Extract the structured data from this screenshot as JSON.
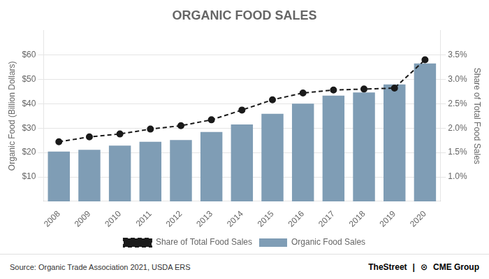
{
  "chart_data": {
    "type": "bar",
    "title": "ORGANIC FOOD SALES",
    "x_label": null,
    "y_label": "Organic Food (Billion Dollars)",
    "y2_label": "Share of Total Food Sales",
    "categories": [
      "2008",
      "2009",
      "2010",
      "2011",
      "2012",
      "2013",
      "2014",
      "2015",
      "2016",
      "2017",
      "2018",
      "2019",
      "2020"
    ],
    "series": [
      {
        "name": "Organic Food Sales",
        "type": "bar",
        "color": "#7f9db5",
        "values": [
          20.4,
          21.1,
          22.8,
          24.4,
          25.1,
          28.4,
          31.5,
          35.9,
          40.0,
          43.3,
          44.6,
          47.9,
          56.5
        ]
      },
      {
        "name": "Share of Total Food Sales",
        "type": "line",
        "axis": "y2",
        "color": "#1a1a1a",
        "marker": "circle",
        "line_style": "dashed",
        "values": [
          1.72,
          1.82,
          1.88,
          1.98,
          2.05,
          2.17,
          2.37,
          2.58,
          2.72,
          2.78,
          2.8,
          2.82,
          3.4
        ]
      }
    ],
    "ylim": [
      0,
      70
    ],
    "yticks": [
      {
        "value": 10,
        "label": "$10"
      },
      {
        "value": 20,
        "label": "$20"
      },
      {
        "value": 30,
        "label": "$30"
      },
      {
        "value": 40,
        "label": "$40"
      },
      {
        "value": 50,
        "label": "$50"
      },
      {
        "value": 60,
        "label": "$60"
      }
    ],
    "y2lim": [
      0.5,
      4.0
    ],
    "y2ticks": [
      {
        "value": 1.0,
        "label": "1.0%"
      },
      {
        "value": 1.5,
        "label": "1.5%"
      },
      {
        "value": 2.0,
        "label": "2.0%"
      },
      {
        "value": 2.5,
        "label": "2.5%"
      },
      {
        "value": 3.0,
        "label": "3.0%"
      },
      {
        "value": 3.5,
        "label": "3.5%"
      }
    ],
    "grid": true,
    "legend": "bottom",
    "annotations": [
      "Source: Organic Trade Association 2021, USDA ERS",
      "TheStreet",
      "|",
      "⊙",
      "CME Group"
    ]
  }
}
